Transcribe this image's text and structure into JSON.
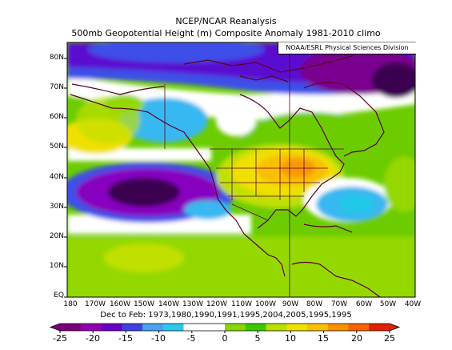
{
  "header": {
    "title": "NCEP/NCAR Reanalysis",
    "subtitle": "500mb Geopotential Height (m) Composite Anomaly 1981-2010 climo",
    "credit": "NOAA/ESRL Physical Sciences Division"
  },
  "map": {
    "lat_labels": [
      "80N",
      "70N",
      "60N",
      "50N",
      "40N",
      "30N",
      "20N",
      "10N",
      "EQ"
    ],
    "lon_labels": [
      "180",
      "170W",
      "160W",
      "150W",
      "140W",
      "130W",
      "120W",
      "110W",
      "100W",
      "90W",
      "80W",
      "70W",
      "60W",
      "50W",
      "40W"
    ],
    "composite_years": "Dec to Feb: 1973,1980,1990,1991,1995,2004,2005,1995,1995"
  },
  "colorbar": {
    "ticks": [
      "-25",
      "-20",
      "-15",
      "-10",
      "-5",
      "0",
      "5",
      "10",
      "15",
      "20",
      "25"
    ],
    "colors": [
      "#7a007a",
      "#9400b0",
      "#6a00c8",
      "#4040e0",
      "#4aa0f0",
      "#2cc8f0",
      "#ffffff",
      "#ffffff",
      "#88d800",
      "#3cc800",
      "#b8e000",
      "#f0e000",
      "#f8c000",
      "#f89000",
      "#f86000",
      "#e02000"
    ]
  },
  "palette": {
    "deep_purple": "#3a0050",
    "purple": "#7a0090",
    "violet": "#8800c0",
    "indigo": "#5a10d0",
    "blue": "#3c50e8",
    "light_blue": "#38b8f0",
    "cyan": "#20c8e8",
    "white": "#ffffff",
    "green": "#6ccc00",
    "light_green": "#94d800",
    "yellow_green": "#c0e000",
    "yellow": "#f0e000",
    "gold": "#f8c000",
    "orange": "#f89800",
    "coastline": "#5a0028"
  }
}
